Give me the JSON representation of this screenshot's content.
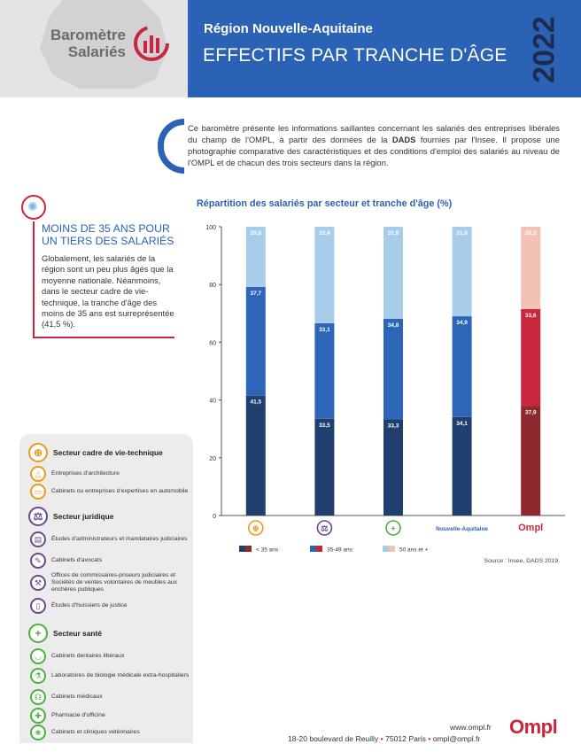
{
  "header": {
    "logo_line1": "Baromètre",
    "logo_line2": "Salariés",
    "region": "Région Nouvelle-Aquitaine",
    "title": "EFFECTIFS PAR TRANCHE D'ÂGE",
    "year": "2022",
    "colors": {
      "blue": "#2a62b5",
      "navy": "#1c2c4e",
      "red": "#c9263d"
    }
  },
  "intro": {
    "before_bold": "Ce baromètre présente les informations saillantes concernant les salariés des entreprises libérales du champ de l'OMPL, à partir des données de la ",
    "bold": "DADS",
    "after_bold": " fournies par l'Insee. Il propose une photographie comparative des caractéristiques et des conditions d'emploi des salariés au niveau de l'OMPL et de chacun des trois secteurs dans la région."
  },
  "note": {
    "icon": "lightbulb-icon",
    "title": "MOINS DE 35 ANS POUR UN TIERS DES SALARIÉS",
    "body": "Globalement, les salariés de la région sont un peu plus âgés que la moyenne nationale. Néanmoins, dans le secteur cadre de vie-technique, la tranche d'âge des moins de 35 ans est surreprésentée (41,5 %)."
  },
  "legend": {
    "sections": [
      {
        "title": "Secteur cadre de vie-technique",
        "icon": "compass-icon",
        "items": [
          {
            "label": "Entreprises d'architecture",
            "icon": "architecture-icon"
          },
          {
            "label": "Cabinets ou entreprises d'expertises en automobile",
            "icon": "car-icon"
          }
        ]
      },
      {
        "title": "Secteur juridique",
        "icon": "scales-icon",
        "items": [
          {
            "label": "Études d'administrateurs et mandataires judiciaires",
            "icon": "building-icon"
          },
          {
            "label": "Cabinets d'avocats",
            "icon": "gavel-icon"
          },
          {
            "label": "Offices de commissaires-priseurs judiciaires et Sociétés de ventes volontaires de meubles aux enchères publiques",
            "icon": "hammer-icon"
          },
          {
            "label": "Études d'huissiers de justice",
            "icon": "document-icon"
          }
        ]
      },
      {
        "title": "Secteur santé",
        "icon": "cross-icon",
        "items": [
          {
            "label": "Cabinets dentaires libéraux",
            "icon": "tooth-icon"
          },
          {
            "label": "Laboratoires de biologie médicale extra-hospitaliers",
            "icon": "flask-icon"
          },
          {
            "label": "Cabinets médicaux",
            "icon": "stethoscope-icon"
          },
          {
            "label": "Pharmacie d'officine",
            "icon": "pharmacy-icon"
          },
          {
            "label": "Cabinets et cliniques vétérinaires",
            "icon": "paw-icon"
          }
        ]
      }
    ]
  },
  "chart_data": {
    "type": "bar",
    "stacked": true,
    "title": "Répartition des salariés par secteur et tranche d'âge (%)",
    "categories": [
      "Cadre de vie-technique",
      "Juridique",
      "Santé",
      "Nouvelle-Aquitaine",
      "Ompl"
    ],
    "category_labels": [
      "",
      "",
      "",
      "Nouvelle-Aquitaine",
      "Ompl"
    ],
    "category_icons": [
      "compass-icon",
      "scales-icon",
      "cross-icon",
      "",
      ""
    ],
    "series": [
      {
        "name": "< 35 ans",
        "values": [
          41.5,
          33.5,
          33.3,
          34.1,
          37.9
        ],
        "labels": [
          "41,5",
          "33,5",
          "33,3",
          "34,1",
          "37,9"
        ]
      },
      {
        "name": "35-49 ans",
        "values": [
          37.7,
          33.1,
          34.8,
          34.9,
          33.6
        ],
        "labels": [
          "37,7",
          "33,1",
          "34,8",
          "34,9",
          "33,6"
        ]
      },
      {
        "name": "50 ans et +",
        "values": [
          20.8,
          33.4,
          31.9,
          31.0,
          28.5
        ],
        "labels": [
          "20,8",
          "33,4",
          "31,9",
          "31,0",
          "28,5"
        ]
      }
    ],
    "colors": {
      "standard": [
        "#213f6e",
        "#2d66b8",
        "#a8cdea"
      ],
      "ompl": [
        "#8e2a2e",
        "#c9263d",
        "#f4c2b4"
      ]
    },
    "ylim": [
      0,
      100
    ],
    "yticks": [
      0,
      20,
      40,
      60,
      80,
      100
    ],
    "grid": false,
    "legend_position": "bottom"
  },
  "source": "Source : Insee, DADS 2019.",
  "footer": {
    "website": "www.ompl.fr",
    "address": "18-20 boulevard de Reuilly",
    "city": "75012 Paris",
    "email": "ompl@ompl.fr",
    "logo": "Ompl"
  }
}
